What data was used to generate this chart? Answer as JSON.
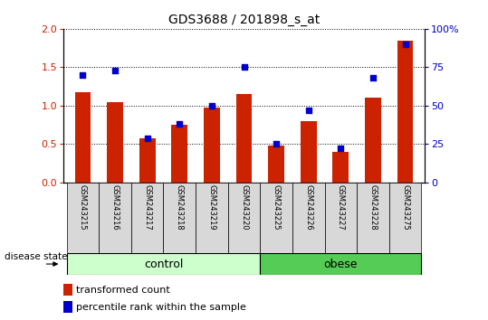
{
  "title": "GDS3688 / 201898_s_at",
  "samples": [
    "GSM243215",
    "GSM243216",
    "GSM243217",
    "GSM243218",
    "GSM243219",
    "GSM243220",
    "GSM243225",
    "GSM243226",
    "GSM243227",
    "GSM243228",
    "GSM243275"
  ],
  "transformed_count": [
    1.18,
    1.05,
    0.57,
    0.75,
    0.97,
    1.15,
    0.48,
    0.8,
    0.4,
    1.1,
    1.85
  ],
  "percentile_rank": [
    70,
    73,
    29,
    38,
    50,
    75,
    25,
    47,
    22,
    68,
    90
  ],
  "n_control": 6,
  "n_obese": 5,
  "bar_color": "#cc2200",
  "dot_color": "#0000cc",
  "ylim_left": [
    0,
    2
  ],
  "ylim_right": [
    0,
    100
  ],
  "yticks_left": [
    0,
    0.5,
    1.0,
    1.5,
    2.0
  ],
  "yticks_right": [
    0,
    25,
    50,
    75,
    100
  ],
  "ytick_labels_right": [
    "0",
    "25",
    "50",
    "75",
    "100%"
  ],
  "control_color": "#ccffcc",
  "obese_color": "#55cc55",
  "ticklabel_color_left": "#cc2200",
  "ticklabel_color_right": "#0000cc",
  "bar_width": 0.5,
  "dot_marker": "s",
  "dot_size": 18,
  "legend_red_label": "transformed count",
  "legend_blue_label": "percentile rank within the sample",
  "disease_state_label": "disease state",
  "control_label": "control",
  "obese_label": "obese",
  "sample_box_color": "#d8d8d8",
  "fig_width": 5.39,
  "fig_height": 3.54,
  "dpi": 100
}
